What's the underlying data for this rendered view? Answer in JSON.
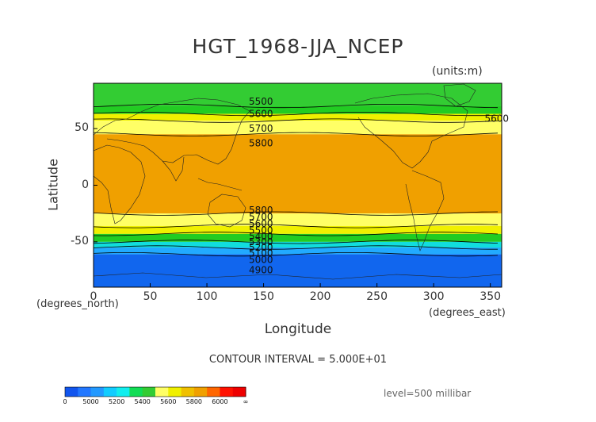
{
  "title": "HGT_1968-JJA_NCEP",
  "units": "(units:m)",
  "xlabel": "Longitude",
  "ylabel": "Latitude",
  "x_unit": "(degrees_east)",
  "y_unit": "(degrees_north)",
  "contour_interval": "CONTOUR INTERVAL = 5.000E+01",
  "level": "level=500 millibar",
  "map_data": {
    "type": "filled-contour map",
    "variable": "geopotential height",
    "xlim": [
      0,
      360
    ],
    "ylim": [
      -90,
      90
    ],
    "x_ticks": [
      "0",
      "50",
      "100",
      "150",
      "200",
      "250",
      "300",
      "350"
    ],
    "y_ticks": [
      "50",
      "0",
      "-50"
    ],
    "bands": [
      {
        "lat_from": 90,
        "lat_to": 70,
        "color": "#33cc33"
      },
      {
        "lat_from": 70,
        "lat_to": 63,
        "color": "#22cc22"
      },
      {
        "lat_from": 63,
        "lat_to": 57,
        "color": "#f0f000"
      },
      {
        "lat_from": 57,
        "lat_to": 45,
        "color": "#ffff66"
      },
      {
        "lat_from": 45,
        "lat_to": -25,
        "color": "#f0a000"
      },
      {
        "lat_from": -25,
        "lat_to": -36,
        "color": "#ffff66"
      },
      {
        "lat_from": -36,
        "lat_to": -43,
        "color": "#f0f000"
      },
      {
        "lat_from": -43,
        "lat_to": -50,
        "color": "#22cc22"
      },
      {
        "lat_from": -50,
        "lat_to": -55,
        "color": "#11dddd"
      },
      {
        "lat_from": -55,
        "lat_to": -61,
        "color": "#22aaff"
      },
      {
        "lat_from": -61,
        "lat_to": -90,
        "color": "#1166ee"
      }
    ],
    "contour_labels": [
      {
        "text": "5500",
        "lon": 130,
        "lat": 74
      },
      {
        "text": "5600",
        "lon": 130,
        "lat": 63
      },
      {
        "text": "5600",
        "lon": 338,
        "lat": 59
      },
      {
        "text": "5700",
        "lon": 130,
        "lat": 50
      },
      {
        "text": "5800",
        "lon": 130,
        "lat": 37
      },
      {
        "text": "5800",
        "lon": 130,
        "lat": -22
      },
      {
        "text": "5700",
        "lon": 130,
        "lat": -28
      },
      {
        "text": "5600",
        "lon": 130,
        "lat": -34
      },
      {
        "text": "5500",
        "lon": 130,
        "lat": -40
      },
      {
        "text": "5400",
        "lon": 130,
        "lat": -45
      },
      {
        "text": "5300",
        "lon": 130,
        "lat": -50
      },
      {
        "text": "5200",
        "lon": 130,
        "lat": -55
      },
      {
        "text": "5100",
        "lon": 130,
        "lat": -60
      },
      {
        "text": "5000",
        "lon": 130,
        "lat": -66
      },
      {
        "text": "4900",
        "lon": 130,
        "lat": -75
      }
    ]
  },
  "colorbar": {
    "colors": [
      "#1155ee",
      "#2277ff",
      "#2299ff",
      "#11ccff",
      "#11eeee",
      "#11dd55",
      "#33cc33",
      "#ffff66",
      "#f0f000",
      "#f0c000",
      "#f0a000",
      "#ff6600",
      "#ff1100",
      "#ee0000"
    ],
    "labels": [
      "0",
      "5000",
      "5200",
      "5400",
      "5600",
      "5800",
      "6000",
      "∞"
    ]
  }
}
